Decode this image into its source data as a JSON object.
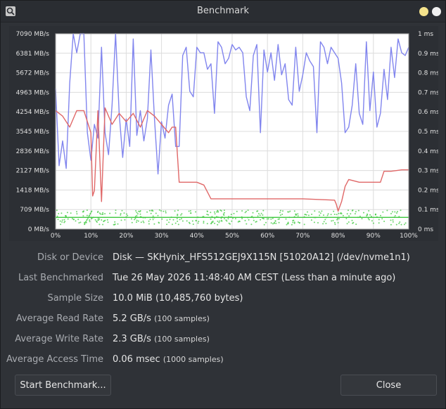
{
  "window": {
    "title": "Benchmark"
  },
  "chart_data": {
    "type": "line",
    "left_axis": {
      "ticks": [
        "0 MB/s",
        "709 MB/s",
        "1418 MB/s",
        "2127 MB/s",
        "2836 MB/s",
        "3545 MB/s",
        "4254 MB/s",
        "4963 MB/s",
        "5672 MB/s",
        "6381 MB/s",
        "7090 MB/s"
      ],
      "ylim": [
        0,
        7090
      ]
    },
    "right_axis": {
      "ticks": [
        "0 ms",
        "0.1 ms",
        "0.2 ms",
        "0.3 ms",
        "0.4 ms",
        "0.5 ms",
        "0.6 ms",
        "0.7 ms",
        "0.8 ms",
        "0.9 ms",
        "1 ms"
      ],
      "ylim": [
        0,
        1
      ]
    },
    "x_axis": {
      "ticks": [
        "0%",
        "10%",
        "20%",
        "30%",
        "40%",
        "50%",
        "60%",
        "70%",
        "80%",
        "90%",
        "100%"
      ],
      "xlim": [
        0,
        100
      ]
    },
    "grid": true,
    "colors": {
      "read": "#8185ee",
      "write": "#e06868",
      "access": "#3cc83c",
      "plot_bg": "#ffffff",
      "grid": "#dcdcdc"
    },
    "series": [
      {
        "axis": "left",
        "x": [
          0,
          1,
          2,
          3,
          4,
          5,
          6,
          7,
          8,
          9,
          10,
          11,
          12,
          13,
          14,
          15,
          16,
          17,
          18,
          19,
          20,
          21,
          22,
          23,
          24,
          25,
          26,
          27,
          28,
          29,
          30,
          31,
          32,
          33,
          34,
          35,
          36,
          37,
          38,
          39,
          40,
          41,
          42,
          43,
          44,
          45,
          46,
          47,
          48,
          49,
          50,
          51,
          52,
          53,
          54,
          55,
          56,
          57,
          58,
          59,
          60,
          61,
          62,
          63,
          64,
          65,
          66,
          67,
          68,
          69,
          70,
          71,
          72,
          73,
          74,
          75,
          76,
          77,
          78,
          79,
          80,
          81,
          82,
          83,
          84,
          85,
          86,
          87,
          88,
          89,
          90,
          91,
          92,
          93,
          94,
          95,
          96,
          97,
          98,
          99,
          100
        ],
        "values": [
          5100,
          2300,
          3200,
          2200,
          5300,
          7090,
          6400,
          7090,
          7090,
          3500,
          2500,
          3800,
          3300,
          6600,
          3500,
          2700,
          4500,
          7090,
          4200,
          2600,
          4000,
          3000,
          6900,
          3400,
          4300,
          3200,
          4000,
          6500,
          4000,
          2000,
          3900,
          3300,
          4500,
          4900,
          3000,
          3000,
          6300,
          6600,
          5000,
          4800,
          6600,
          6400,
          6400,
          5800,
          6000,
          4200,
          6800,
          6600,
          6000,
          6200,
          6700,
          6500,
          6600,
          6400,
          4800,
          4300,
          6300,
          6700,
          3500,
          6500,
          5700,
          6400,
          5400,
          6700,
          5600,
          6000,
          4700,
          4500,
          6600,
          5000,
          5600,
          6400,
          6100,
          5900,
          3500,
          6800,
          6600,
          6000,
          6600,
          6400,
          6200,
          5300,
          3500,
          3700,
          4500,
          6000,
          4200,
          3800,
          6800,
          4300,
          5700,
          3700,
          4200,
          5800,
          4700,
          6600,
          5500,
          6900,
          6400,
          6300,
          6600
        ]
      },
      {
        "axis": "left",
        "x": [
          0,
          2,
          4,
          6,
          8,
          10,
          10.5,
          11,
          12,
          13,
          14,
          16,
          18,
          20,
          22,
          24,
          26,
          28,
          30,
          32,
          33,
          34,
          35,
          37,
          40,
          42,
          44,
          46,
          48,
          50,
          60,
          70,
          79,
          79.5,
          80,
          81,
          82,
          83,
          86,
          88,
          90,
          92,
          93,
          95,
          98,
          100
        ],
        "values": [
          4300,
          4100,
          3700,
          4300,
          4300,
          3500,
          1200,
          1400,
          4300,
          1000,
          4400,
          3800,
          4200,
          3900,
          4200,
          3700,
          4300,
          4100,
          3800,
          3500,
          3700,
          3700,
          1700,
          1700,
          1700,
          1600,
          1100,
          1100,
          1100,
          1100,
          1100,
          1100,
          1050,
          900,
          650,
          1000,
          1550,
          1800,
          1700,
          1700,
          1700,
          1700,
          2100,
          2100,
          2150,
          2150
        ]
      },
      {
        "axis": "right",
        "x": [
          0,
          10,
          20,
          30,
          40,
          50,
          60,
          70,
          80,
          90,
          100
        ],
        "values": [
          0.06,
          0.06,
          0.06,
          0.06,
          0.06,
          0.06,
          0.06,
          0.06,
          0.06,
          0.06,
          0.06
        ]
      }
    ]
  },
  "details": {
    "device_label": "Disk or Device",
    "device_value": "Disk — SKHynix_HFS512GEJ9X115N [51020A12] (/dev/nvme1n1)",
    "last_label": "Last Benchmarked",
    "last_value": "Tue 26 May 2026 11:48:40 AM CEST (Less than a minute ago)",
    "sample_label": "Sample Size",
    "sample_value": "10.0 MiB (10,485,760 bytes)",
    "read_label": "Average Read Rate",
    "read_value": "5.2 GB/s",
    "read_samples": "(100 samples)",
    "write_label": "Average Write Rate",
    "write_value": "2.3 GB/s",
    "write_samples": "(100 samples)",
    "access_label": "Average Access Time",
    "access_value": "0.06 msec",
    "access_samples": "(1000 samples)"
  },
  "buttons": {
    "start": "Start Benchmark...",
    "close": "Close"
  }
}
